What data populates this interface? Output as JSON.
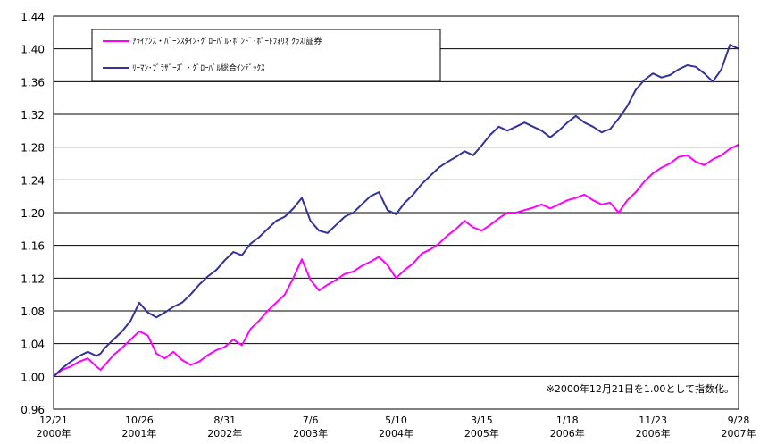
{
  "chart_data": {
    "type": "line",
    "title": "",
    "xlabel": "",
    "ylabel": "",
    "ylim": [
      0.96,
      1.44
    ],
    "yticks": [
      0.96,
      1.0,
      1.04,
      1.08,
      1.12,
      1.16,
      1.2,
      1.24,
      1.28,
      1.32,
      1.36,
      1.4,
      1.44
    ],
    "ytick_labels": [
      "0.96",
      "1.00",
      "1.04",
      "1.08",
      "1.12",
      "1.16",
      "1.20",
      "1.24",
      "1.28",
      "1.32",
      "1.36",
      "1.40",
      "1.44"
    ],
    "grid": "horizontal",
    "legend_position": "top-left",
    "x_ticks": [
      {
        "top": "12/21",
        "bottom": "2000年"
      },
      {
        "top": "10/26",
        "bottom": "2001年"
      },
      {
        "top": "8/31",
        "bottom": "2002年"
      },
      {
        "top": "7/6",
        "bottom": "2003年"
      },
      {
        "top": "5/10",
        "bottom": "2004年"
      },
      {
        "top": "3/15",
        "bottom": "2005年"
      },
      {
        "top": "1/18",
        "bottom": "2006年"
      },
      {
        "top": "11/23",
        "bottom": "2006年"
      },
      {
        "top": "9/28",
        "bottom": "2007年"
      }
    ],
    "annotation": "※2000年12月21日を1.00として指数化。",
    "series": [
      {
        "name": "ｱﾗｲｱﾝｽ・ﾊﾞｰﾝｽﾀｲﾝ･ｸﾞﾛｰﾊﾞﾙ･ﾎﾞﾝﾄﾞ･ﾎﾟｰﾄﾌｫﾘｵ ｸﾗｽI証券",
        "color": "#ff00ff",
        "x": [
          0,
          0.1,
          0.2,
          0.3,
          0.4,
          0.5,
          0.55,
          0.6,
          0.7,
          0.8,
          0.9,
          1.0,
          1.1,
          1.2,
          1.3,
          1.4,
          1.5,
          1.6,
          1.7,
          1.8,
          1.9,
          2.0,
          2.1,
          2.2,
          2.3,
          2.4,
          2.5,
          2.6,
          2.7,
          2.8,
          2.9,
          3.0,
          3.1,
          3.2,
          3.3,
          3.4,
          3.5,
          3.6,
          3.7,
          3.8,
          3.9,
          4.0,
          4.1,
          4.2,
          4.3,
          4.4,
          4.5,
          4.6,
          4.7,
          4.8,
          4.9,
          5.0,
          5.1,
          5.2,
          5.3,
          5.4,
          5.5,
          5.6,
          5.7,
          5.8,
          5.9,
          6.0,
          6.1,
          6.2,
          6.3,
          6.4,
          6.5,
          6.6,
          6.7,
          6.8,
          6.9,
          7.0,
          7.1,
          7.2,
          7.3,
          7.4,
          7.5,
          7.6,
          7.7,
          7.8,
          7.9,
          8.0
        ],
        "values": [
          1.0,
          1.008,
          1.012,
          1.018,
          1.022,
          1.012,
          1.008,
          1.014,
          1.026,
          1.035,
          1.045,
          1.055,
          1.05,
          1.028,
          1.022,
          1.03,
          1.02,
          1.014,
          1.018,
          1.026,
          1.032,
          1.036,
          1.045,
          1.038,
          1.058,
          1.068,
          1.08,
          1.09,
          1.1,
          1.12,
          1.143,
          1.118,
          1.105,
          1.112,
          1.118,
          1.125,
          1.128,
          1.135,
          1.14,
          1.146,
          1.136,
          1.12,
          1.13,
          1.138,
          1.15,
          1.155,
          1.162,
          1.172,
          1.18,
          1.19,
          1.182,
          1.178,
          1.185,
          1.193,
          1.2,
          1.2,
          1.203,
          1.206,
          1.21,
          1.205,
          1.21,
          1.215,
          1.218,
          1.222,
          1.215,
          1.21,
          1.212,
          1.2,
          1.215,
          1.225,
          1.238,
          1.248,
          1.255,
          1.26,
          1.268,
          1.27,
          1.262,
          1.258,
          1.265,
          1.27,
          1.278,
          1.283
        ]
      },
      {
        "name": "ﾘｰﾏﾝ･ﾌﾞﾗｻﾞｰｽﾞ・ｸﾞﾛｰﾊﾞﾙ総合ｲﾝﾃﾞｯｸｽ",
        "color": "#333399",
        "x": [
          0,
          0.1,
          0.2,
          0.3,
          0.4,
          0.5,
          0.55,
          0.6,
          0.7,
          0.8,
          0.9,
          1.0,
          1.1,
          1.2,
          1.3,
          1.4,
          1.5,
          1.6,
          1.7,
          1.8,
          1.9,
          2.0,
          2.1,
          2.2,
          2.3,
          2.4,
          2.5,
          2.6,
          2.7,
          2.8,
          2.9,
          3.0,
          3.1,
          3.2,
          3.3,
          3.4,
          3.5,
          3.6,
          3.7,
          3.8,
          3.9,
          4.0,
          4.1,
          4.2,
          4.3,
          4.4,
          4.5,
          4.6,
          4.7,
          4.8,
          4.9,
          5.0,
          5.1,
          5.2,
          5.3,
          5.4,
          5.5,
          5.6,
          5.7,
          5.8,
          5.9,
          6.0,
          6.1,
          6.2,
          6.3,
          6.4,
          6.5,
          6.6,
          6.7,
          6.8,
          6.9,
          7.0,
          7.1,
          7.2,
          7.3,
          7.4,
          7.5,
          7.6,
          7.7,
          7.8,
          7.9,
          8.0
        ],
        "values": [
          1.0,
          1.01,
          1.018,
          1.025,
          1.03,
          1.025,
          1.028,
          1.035,
          1.045,
          1.055,
          1.068,
          1.09,
          1.078,
          1.072,
          1.078,
          1.085,
          1.09,
          1.1,
          1.112,
          1.122,
          1.13,
          1.142,
          1.152,
          1.148,
          1.162,
          1.17,
          1.18,
          1.19,
          1.195,
          1.205,
          1.218,
          1.19,
          1.178,
          1.175,
          1.185,
          1.195,
          1.2,
          1.21,
          1.22,
          1.225,
          1.203,
          1.198,
          1.212,
          1.222,
          1.235,
          1.245,
          1.255,
          1.262,
          1.268,
          1.275,
          1.27,
          1.282,
          1.295,
          1.305,
          1.3,
          1.305,
          1.31,
          1.305,
          1.3,
          1.292,
          1.3,
          1.31,
          1.318,
          1.31,
          1.305,
          1.298,
          1.302,
          1.315,
          1.33,
          1.35,
          1.362,
          1.37,
          1.365,
          1.368,
          1.375,
          1.38,
          1.378,
          1.37,
          1.36,
          1.375,
          1.405,
          1.4
        ]
      }
    ]
  }
}
